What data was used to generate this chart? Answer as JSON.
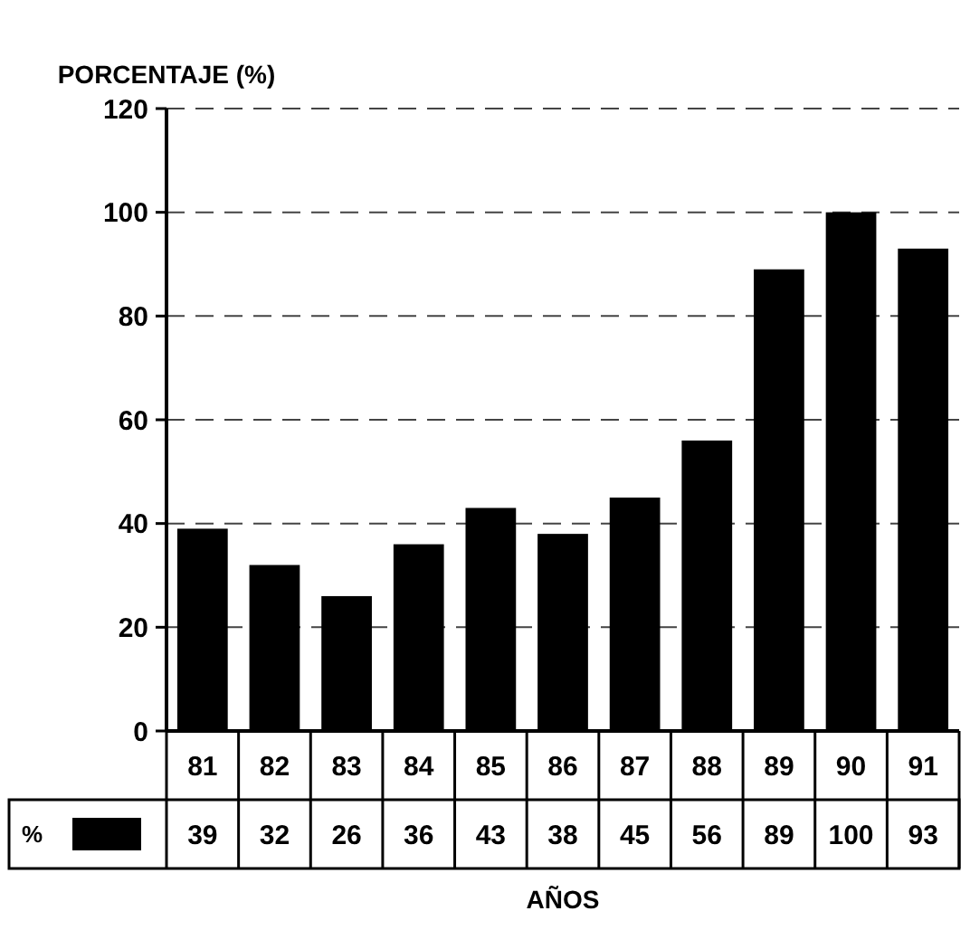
{
  "chart_data": {
    "type": "bar",
    "ylabel": "PORCENTAJE (%)",
    "xlabel": "AÑOS",
    "categories": [
      "81",
      "82",
      "83",
      "84",
      "85",
      "86",
      "87",
      "88",
      "89",
      "90",
      "91"
    ],
    "series": [
      {
        "name": "%",
        "color": "#000000",
        "values": [
          39,
          32,
          26,
          36,
          43,
          38,
          45,
          56,
          89,
          100,
          93
        ]
      }
    ],
    "ylim": [
      0,
      120
    ],
    "yticks": [
      0,
      20,
      40,
      60,
      80,
      100,
      120
    ],
    "grid": "y",
    "line_style": "dashed",
    "legend": "bottom",
    "data_labels": true
  }
}
